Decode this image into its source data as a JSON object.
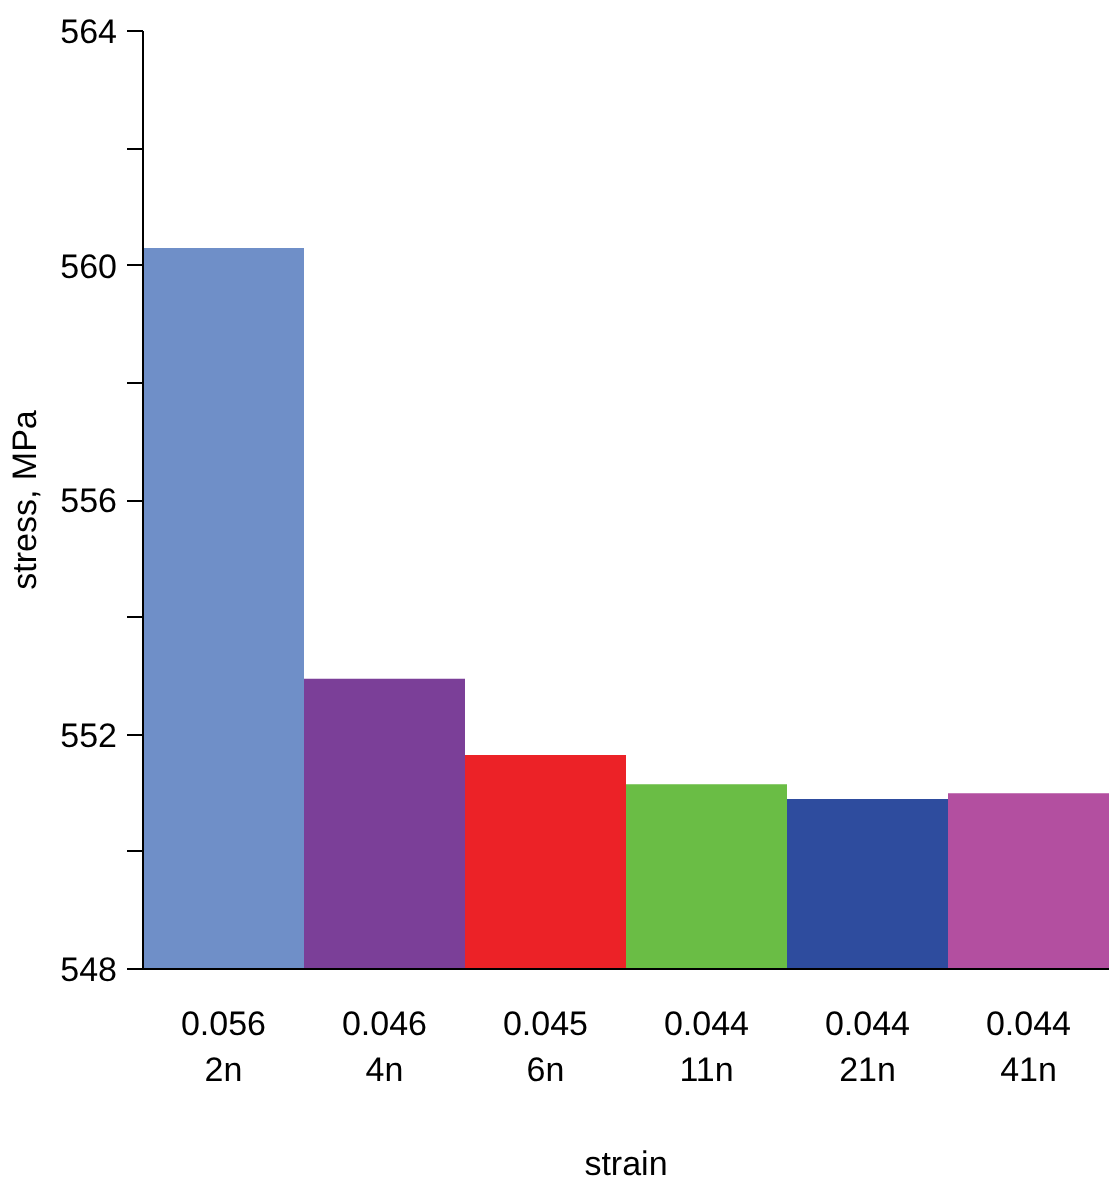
{
  "chart_data": {
    "type": "bar",
    "xlabel": "strain",
    "ylabel": "stress, MPa",
    "categories": [
      "0.056\n2n",
      "0.046\n4n",
      "0.045\n6n",
      "0.044\n11n",
      "0.044\n21n",
      "0.044\n41n"
    ],
    "values": [
      560.3,
      552.95,
      551.65,
      551.15,
      550.9,
      551.0
    ],
    "colors": [
      "#6f8fc8",
      "#7b3f98",
      "#ec2227",
      "#6abd45",
      "#2e4c9e",
      "#b34fa0"
    ],
    "ylim": [
      548,
      564
    ],
    "yticks": [
      548,
      {
        "value": 550,
        "label": null
      },
      552,
      {
        "value": 554,
        "label": null
      },
      556,
      {
        "value": 558,
        "label": null
      },
      560,
      {
        "value": 562,
        "label": null
      },
      564
    ],
    "grid": false
  }
}
